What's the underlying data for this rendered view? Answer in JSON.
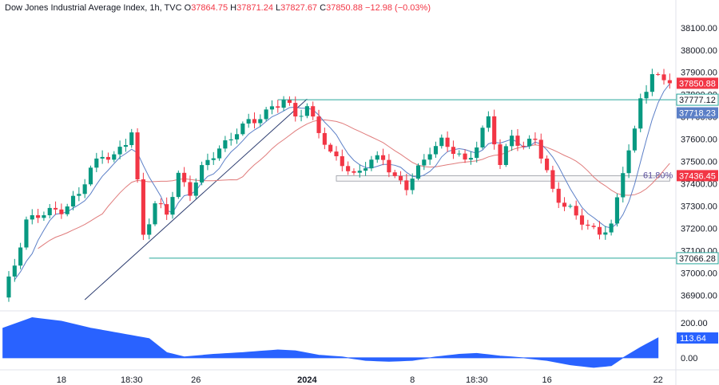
{
  "header": {
    "title": "Dow Jones Industrial Average Index, 1h, TVC",
    "o_label": "O",
    "o": "37864.75",
    "h_label": "H",
    "h": "37871.24",
    "l_label": "L",
    "l": "37827.67",
    "c_label": "C",
    "c": "37850.88",
    "change": "−12.98 (−0.03%)"
  },
  "colors": {
    "up": "#089981",
    "down": "#f23645",
    "level_line": "#26a69a",
    "sma_fast": "#5b7fc7",
    "sma_slow": "#e07c7c",
    "trend_line": "#2a3a6e",
    "osc_fill": "#2962ff"
  },
  "chart_data": [
    {
      "type": "candlestick",
      "y_ticks": [
        36900,
        37000,
        37100,
        37200,
        37300,
        37400,
        37500,
        37600,
        37700,
        37800,
        37900,
        38000,
        38100
      ],
      "ylim": [
        36830,
        38160
      ],
      "x_ticks": [
        "18",
        "18:30",
        "26",
        "2024",
        "8",
        "18:30",
        "16",
        "22"
      ],
      "x_tick_bars": [
        10,
        22,
        33,
        52,
        70,
        81,
        93,
        112
      ],
      "bar_count": 115,
      "price_tags": [
        {
          "label": "37850.88",
          "value": 37850.88,
          "style": "down"
        },
        {
          "label": "37777.12",
          "value": 37777.12,
          "style": "level"
        },
        {
          "label": "37718.23",
          "value": 37718.23,
          "style": "sma_fast"
        },
        {
          "label": "37436.45",
          "value": 37436.45,
          "style": "sma_slow"
        },
        {
          "label": "37066.28",
          "value": 37066.28,
          "style": "level"
        }
      ],
      "levels": [
        {
          "value": 37777.12,
          "from_bar": 47
        },
        {
          "value": 37066.28,
          "from_bar": 25
        }
      ],
      "fib_zone": {
        "label": "61.80%",
        "top": 37436,
        "bottom": 37412,
        "from_bar": 57,
        "to_bar": 118
      },
      "trend_line": {
        "from": [
          14,
          36880
        ],
        "to": [
          52,
          37780
        ]
      },
      "anchors": [
        [
          0,
          36880
        ],
        [
          2,
          37040
        ],
        [
          4,
          37240
        ],
        [
          7,
          37260
        ],
        [
          10,
          37290
        ],
        [
          13,
          37350
        ],
        [
          15,
          37460
        ],
        [
          17,
          37540
        ],
        [
          19,
          37520
        ],
        [
          21,
          37580
        ],
        [
          22,
          37630
        ],
        [
          24,
          37180
        ],
        [
          26,
          37310
        ],
        [
          28,
          37260
        ],
        [
          30,
          37440
        ],
        [
          32,
          37370
        ],
        [
          34,
          37460
        ],
        [
          37,
          37560
        ],
        [
          40,
          37640
        ],
        [
          43,
          37680
        ],
        [
          46,
          37750
        ],
        [
          48,
          37770
        ],
        [
          50,
          37700
        ],
        [
          52,
          37750
        ],
        [
          54,
          37640
        ],
        [
          56,
          37520
        ],
        [
          58,
          37500
        ],
        [
          60,
          37440
        ],
        [
          62,
          37480
        ],
        [
          65,
          37520
        ],
        [
          67,
          37430
        ],
        [
          69,
          37380
        ],
        [
          71,
          37460
        ],
        [
          73,
          37560
        ],
        [
          75,
          37590
        ],
        [
          77,
          37540
        ],
        [
          79,
          37500
        ],
        [
          81,
          37580
        ],
        [
          83,
          37690
        ],
        [
          85,
          37480
        ],
        [
          87,
          37630
        ],
        [
          89,
          37560
        ],
        [
          91,
          37600
        ],
        [
          92,
          37520
        ],
        [
          94,
          37380
        ],
        [
          96,
          37300
        ],
        [
          98,
          37250
        ],
        [
          100,
          37210
        ],
        [
          102,
          37190
        ],
        [
          104,
          37200
        ],
        [
          105,
          37320
        ],
        [
          106,
          37460
        ],
        [
          107,
          37560
        ],
        [
          108,
          37640
        ],
        [
          109,
          37790
        ],
        [
          110,
          37830
        ],
        [
          111,
          37880
        ],
        [
          112,
          37864
        ],
        [
          113,
          37851
        ]
      ],
      "oscillator": {
        "ticks": [
          0,
          200
        ],
        "ylim": [
          -60,
          260
        ],
        "label": "113.64",
        "value": 113.64,
        "anchors": [
          [
            0,
            170
          ],
          [
            5,
            230
          ],
          [
            10,
            210
          ],
          [
            15,
            170
          ],
          [
            20,
            140
          ],
          [
            25,
            110
          ],
          [
            28,
            30
          ],
          [
            31,
            5
          ],
          [
            36,
            20
          ],
          [
            41,
            30
          ],
          [
            47,
            45
          ],
          [
            50,
            40
          ],
          [
            54,
            15
          ],
          [
            58,
            5
          ],
          [
            62,
            -15
          ],
          [
            66,
            -20
          ],
          [
            70,
            -15
          ],
          [
            74,
            5
          ],
          [
            78,
            20
          ],
          [
            81,
            25
          ],
          [
            85,
            10
          ],
          [
            89,
            0
          ],
          [
            93,
            -15
          ],
          [
            97,
            -40
          ],
          [
            101,
            -55
          ],
          [
            104,
            -45
          ],
          [
            106,
            0
          ],
          [
            109,
            60
          ],
          [
            112,
            113.64
          ]
        ]
      }
    }
  ]
}
